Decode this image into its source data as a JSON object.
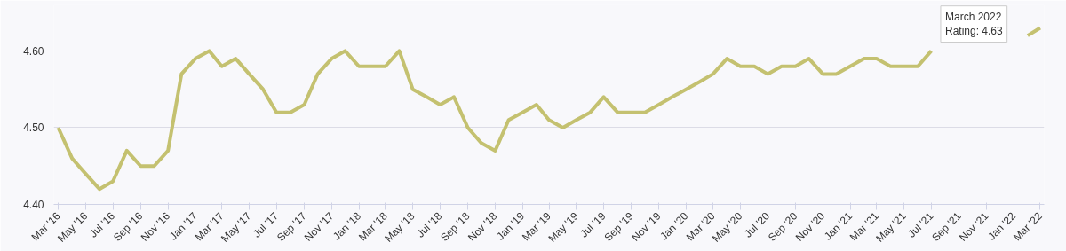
{
  "chart_data": {
    "type": "line",
    "x": [
      "2016-03",
      "2016-04",
      "2016-05",
      "2016-06",
      "2016-07",
      "2016-08",
      "2016-09",
      "2016-10",
      "2016-11",
      "2016-12",
      "2017-01",
      "2017-02",
      "2017-03",
      "2017-04",
      "2017-05",
      "2017-06",
      "2017-07",
      "2017-08",
      "2017-09",
      "2017-10",
      "2017-11",
      "2017-12",
      "2018-01",
      "2018-02",
      "2018-03",
      "2018-04",
      "2018-05",
      "2018-06",
      "2018-07",
      "2018-08",
      "2018-09",
      "2018-10",
      "2018-11",
      "2018-12",
      "2019-01",
      "2019-02",
      "2019-03",
      "2019-04",
      "2019-05",
      "2019-06",
      "2019-07",
      "2019-08",
      "2019-09",
      "2019-10",
      "2019-11",
      "2019-12",
      "2020-01",
      "2020-02",
      "2020-03",
      "2020-04",
      "2020-05",
      "2020-06",
      "2020-07",
      "2020-08",
      "2020-09",
      "2020-10",
      "2020-11",
      "2020-12",
      "2021-01",
      "2021-02",
      "2021-03",
      "2021-04",
      "2021-05",
      "2021-06",
      "2021-07",
      "2021-08",
      "2021-09",
      "2021-10",
      "2021-11",
      "2021-12",
      "2022-01",
      "2022-02",
      "2022-03"
    ],
    "series": [
      {
        "color": "#c4c170",
        "values": [
          4.5,
          4.46,
          4.44,
          4.42,
          4.43,
          4.47,
          4.45,
          4.45,
          4.47,
          4.57,
          4.59,
          4.6,
          4.58,
          4.59,
          4.57,
          4.55,
          4.52,
          4.52,
          4.53,
          4.57,
          4.59,
          4.6,
          4.58,
          4.58,
          4.58,
          4.6,
          4.55,
          4.54,
          4.53,
          4.54,
          4.5,
          4.48,
          4.47,
          4.51,
          4.52,
          4.53,
          4.51,
          4.5,
          4.51,
          4.52,
          4.54,
          4.52,
          4.52,
          4.52,
          4.53,
          4.54,
          4.55,
          4.56,
          4.57,
          4.59,
          4.58,
          4.58,
          4.57,
          4.58,
          4.58,
          4.59,
          4.57,
          4.57,
          4.58,
          4.59,
          4.59,
          4.58,
          4.58,
          4.58,
          4.6,
          null,
          null,
          null,
          null,
          null,
          null,
          4.62,
          4.63
        ]
      }
    ],
    "xlim": [
      "2016-02-20",
      "2022-03-10"
    ],
    "ylim": [
      4.4,
      4.66
    ],
    "yticks": [
      {
        "value": 4.4,
        "label": "4.40"
      },
      {
        "value": 4.5,
        "label": "4.50"
      },
      {
        "value": 4.6,
        "label": "4.60"
      }
    ],
    "xticks": [
      {
        "value": "2016-03",
        "label": "Mar '16"
      },
      {
        "value": "2016-05",
        "label": "May '16"
      },
      {
        "value": "2016-07",
        "label": "Jul '16"
      },
      {
        "value": "2016-09",
        "label": "Sep '16"
      },
      {
        "value": "2016-11",
        "label": "Nov '16"
      },
      {
        "value": "2017-01",
        "label": "Jan '17"
      },
      {
        "value": "2017-03",
        "label": "Mar '17"
      },
      {
        "value": "2017-05",
        "label": "May '17"
      },
      {
        "value": "2017-07",
        "label": "Jul '17"
      },
      {
        "value": "2017-09",
        "label": "Sep '17"
      },
      {
        "value": "2017-11",
        "label": "Nov '17"
      },
      {
        "value": "2018-01",
        "label": "Jan '18"
      },
      {
        "value": "2018-03",
        "label": "Mar '18"
      },
      {
        "value": "2018-05",
        "label": "May '18"
      },
      {
        "value": "2018-07",
        "label": "Jul '18"
      },
      {
        "value": "2018-09",
        "label": "Sep '18"
      },
      {
        "value": "2018-11",
        "label": "Nov '18"
      },
      {
        "value": "2019-01",
        "label": "Jan '19"
      },
      {
        "value": "2019-03",
        "label": "Mar '19"
      },
      {
        "value": "2019-05",
        "label": "May '19"
      },
      {
        "value": "2019-07",
        "label": "Jul '19"
      },
      {
        "value": "2019-09",
        "label": "Sep '19"
      },
      {
        "value": "2019-11",
        "label": "Nov '19"
      },
      {
        "value": "2020-01",
        "label": "Jan '20"
      },
      {
        "value": "2020-03",
        "label": "Mar '20"
      },
      {
        "value": "2020-05",
        "label": "May '20"
      },
      {
        "value": "2020-07",
        "label": "Jul '20"
      },
      {
        "value": "2020-09",
        "label": "Sep '20"
      },
      {
        "value": "2020-11",
        "label": "Nov '20"
      },
      {
        "value": "2021-01",
        "label": "Jan '21"
      },
      {
        "value": "2021-03",
        "label": "Mar '21"
      },
      {
        "value": "2021-05",
        "label": "May '21"
      },
      {
        "value": "2021-07",
        "label": "Jul '21"
      },
      {
        "value": "2021-09",
        "label": "Sep '21"
      },
      {
        "value": "2021-11",
        "label": "Nov '21"
      },
      {
        "value": "2022-01",
        "label": "Jan '22"
      },
      {
        "value": "2022-03",
        "label": "Mar '22"
      }
    ],
    "grid": "y",
    "marker": "none",
    "line_style": "solid",
    "annotations": [
      "March 2022\nRating: 4.63"
    ]
  }
}
